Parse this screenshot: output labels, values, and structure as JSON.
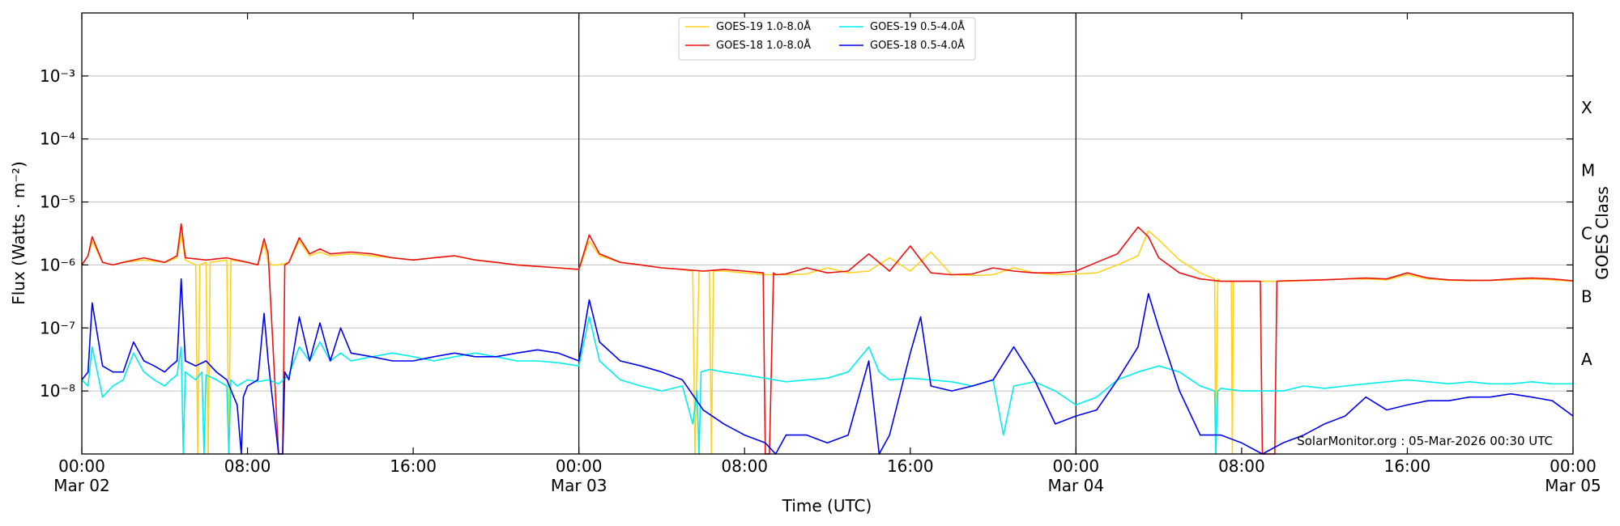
{
  "chart_data": {
    "type": "line",
    "title": "",
    "xlabel": "Time (UTC)",
    "ylabel": "Flux (Watts · m⁻²)",
    "y2label": "GOES Class",
    "yscale": "log",
    "xlim_hours": [
      0,
      72
    ],
    "ylim": [
      1e-09,
      0.01
    ],
    "grid": true,
    "legend_position": "top-center",
    "day_boundaries_hours": [
      24,
      48
    ],
    "x_ticks": [
      {
        "hour": 0,
        "time": "00:00",
        "date": "Mar 02"
      },
      {
        "hour": 8,
        "time": "08:00",
        "date": ""
      },
      {
        "hour": 16,
        "time": "16:00",
        "date": ""
      },
      {
        "hour": 24,
        "time": "00:00",
        "date": "Mar 03"
      },
      {
        "hour": 32,
        "time": "08:00",
        "date": ""
      },
      {
        "hour": 40,
        "time": "16:00",
        "date": ""
      },
      {
        "hour": 48,
        "time": "00:00",
        "date": "Mar 04"
      },
      {
        "hour": 56,
        "time": "08:00",
        "date": ""
      },
      {
        "hour": 64,
        "time": "16:00",
        "date": ""
      },
      {
        "hour": 72,
        "time": "00:00",
        "date": "Mar 05"
      }
    ],
    "y_ticks": [
      {
        "exp": -8,
        "label": "10⁻⁸"
      },
      {
        "exp": -7,
        "label": "10⁻⁷"
      },
      {
        "exp": -6,
        "label": "10⁻⁶"
      },
      {
        "exp": -5,
        "label": "10⁻⁵"
      },
      {
        "exp": -4,
        "label": "10⁻⁴"
      },
      {
        "exp": -3,
        "label": "10⁻³"
      }
    ],
    "goes_classes": [
      {
        "label": "A",
        "exp": -7.5
      },
      {
        "label": "B",
        "exp": -6.5
      },
      {
        "label": "C",
        "exp": -5.5
      },
      {
        "label": "M",
        "exp": -4.5
      },
      {
        "label": "X",
        "exp": -3.5
      }
    ],
    "credit": "SolarMonitor.org : 05-Mar-2026 00:30 UTC",
    "series": [
      {
        "name": "GOES-19 1.0-8.0Å",
        "color": "#ffd21f",
        "x": [
          0,
          0.3,
          0.5,
          1,
          1.5,
          2,
          3,
          4,
          4.6,
          4.8,
          5,
          5.5,
          5.6,
          5.7,
          6,
          6.1,
          6.2,
          7,
          7.1,
          7.2,
          8,
          8.5,
          8.8,
          9,
          9.2,
          9.5,
          10,
          10.5,
          11,
          11.5,
          12,
          13,
          14,
          15,
          16,
          17,
          18,
          19,
          20,
          21,
          22,
          23,
          24,
          24.5,
          25,
          26,
          27,
          28,
          29,
          29.5,
          29.6,
          29.8,
          30.3,
          30.4,
          30.5,
          31,
          32,
          33,
          34,
          35,
          36,
          37,
          38,
          39,
          40,
          41,
          42,
          43,
          44,
          45,
          46,
          47,
          48,
          49,
          50,
          51,
          51.5,
          52,
          53,
          54,
          54.7,
          54.75,
          54.85,
          55,
          55.5,
          55.55,
          55.6,
          56,
          57,
          58,
          59,
          60,
          61,
          62,
          63,
          64,
          65,
          66,
          67,
          68,
          69,
          70,
          71,
          72
        ],
        "y": [
          1e-06,
          1.4e-06,
          2.4e-06,
          1.1e-06,
          1e-06,
          1.1e-06,
          1.2e-06,
          1.1e-06,
          1.3e-06,
          3e-06,
          1.2e-06,
          1e-06,
          1e-09,
          1e-06,
          1.1e-06,
          1e-09,
          1.1e-06,
          1.2e-06,
          1e-09,
          1.2e-06,
          1.1e-06,
          1e-06,
          2.2e-06,
          1.1e-06,
          1e-06,
          1e-06,
          1.1e-06,
          2.4e-06,
          1.4e-06,
          1.6e-06,
          1.4e-06,
          1.5e-06,
          1.4e-06,
          1.3e-06,
          1.2e-06,
          1.3e-06,
          1.4e-06,
          1.2e-06,
          1.1e-06,
          1e-06,
          9.5e-07,
          9e-07,
          8.5e-07,
          2.4e-06,
          1.4e-06,
          1.1e-06,
          1e-06,
          9e-07,
          8.5e-07,
          8e-07,
          1e-09,
          8e-07,
          8e-07,
          1e-09,
          8e-07,
          8e-07,
          7.5e-07,
          7e-07,
          7e-07,
          7.2e-07,
          9e-07,
          7.5e-07,
          8e-07,
          1.3e-06,
          8e-07,
          1.6e-06,
          7e-07,
          6.8e-07,
          7e-07,
          9e-07,
          7.5e-07,
          7e-07,
          7.2e-07,
          7.5e-07,
          1e-06,
          1.4e-06,
          3.5e-06,
          2.5e-06,
          1.2e-06,
          7.5e-07,
          6e-07,
          1e-09,
          6e-07,
          5.5e-07,
          5.5e-07,
          1e-09,
          5.5e-07,
          5.5e-07,
          5.5e-07,
          5.5e-07,
          5.6e-07,
          5.8e-07,
          6e-07,
          6e-07,
          5.8e-07,
          7e-07,
          6e-07,
          5.7e-07,
          5.6e-07,
          5.7e-07,
          5.8e-07,
          6e-07,
          5.8e-07,
          5.5e-07
        ]
      },
      {
        "name": "GOES-18 1.0-8.0Å",
        "color": "#ee1111",
        "x": [
          0,
          0.3,
          0.5,
          1,
          1.5,
          2,
          3,
          4,
          4.6,
          4.8,
          5,
          6,
          7,
          8,
          8.5,
          8.8,
          9,
          9.5,
          9.7,
          9.8,
          10,
          10.5,
          11,
          11.5,
          12,
          13,
          14,
          15,
          16,
          17,
          18,
          19,
          20,
          21,
          22,
          23,
          24,
          24.5,
          25,
          26,
          27,
          28,
          29,
          30,
          31,
          32,
          32.9,
          33.0,
          33.2,
          33.4,
          33.5,
          34,
          35,
          36,
          37,
          38,
          39,
          40,
          41,
          42,
          43,
          44,
          45,
          46,
          47,
          48,
          49,
          50,
          51,
          51.5,
          52,
          53,
          54,
          55,
          56,
          56.9,
          57.0,
          57.6,
          57.7,
          58,
          59,
          60,
          61,
          62,
          63,
          64,
          65,
          66,
          67,
          68,
          69,
          70,
          71,
          72
        ],
        "y": [
          1e-06,
          1.4e-06,
          2.8e-06,
          1.1e-06,
          1e-06,
          1.1e-06,
          1.3e-06,
          1.1e-06,
          1.4e-06,
          4.5e-06,
          1.3e-06,
          1.2e-06,
          1.3e-06,
          1.1e-06,
          1e-06,
          2.6e-06,
          1.5e-06,
          1e-09,
          1e-09,
          1e-06,
          1.1e-06,
          2.7e-06,
          1.5e-06,
          1.8e-06,
          1.5e-06,
          1.6e-06,
          1.5e-06,
          1.3e-06,
          1.2e-06,
          1.3e-06,
          1.4e-06,
          1.2e-06,
          1.1e-06,
          1e-06,
          9.5e-07,
          9e-07,
          8.5e-07,
          3e-06,
          1.5e-06,
          1.1e-06,
          1e-06,
          9e-07,
          8.5e-07,
          8e-07,
          8.5e-07,
          8e-07,
          7.5e-07,
          1e-09,
          1e-09,
          7.5e-07,
          7e-07,
          7.2e-07,
          9e-07,
          7.5e-07,
          8e-07,
          1.5e-06,
          8e-07,
          2e-06,
          7.5e-07,
          7e-07,
          7.2e-07,
          9e-07,
          8e-07,
          7.5e-07,
          7.5e-07,
          8e-07,
          1.1e-06,
          1.5e-06,
          4e-06,
          2.8e-06,
          1.3e-06,
          7.5e-07,
          6e-07,
          5.5e-07,
          5.5e-07,
          5.5e-07,
          1e-09,
          1e-09,
          5.5e-07,
          5.6e-07,
          5.7e-07,
          5.8e-07,
          6e-07,
          6.2e-07,
          6e-07,
          7.5e-07,
          6.2e-07,
          5.8e-07,
          5.7e-07,
          5.7e-07,
          6e-07,
          6.2e-07,
          6e-07,
          5.6e-07
        ]
      },
      {
        "name": "GOES-19 0.5-4.0Å",
        "color": "#00eeee",
        "x": [
          0,
          0.3,
          0.5,
          1,
          1.5,
          2,
          2.5,
          3,
          3.5,
          4,
          4.3,
          4.6,
          4.8,
          4.9,
          5,
          5.5,
          5.8,
          5.9,
          6,
          6.5,
          7,
          7.1,
          7.2,
          7.5,
          8,
          8.5,
          9,
          9.5,
          10,
          10.5,
          11,
          11.5,
          12,
          12.5,
          13,
          14,
          15,
          16,
          17,
          18,
          19,
          20,
          21,
          22,
          23,
          24,
          24.5,
          25,
          26,
          27,
          28,
          29,
          29.5,
          29.7,
          29.8,
          29.9,
          30.3,
          31,
          32,
          33,
          34,
          35,
          36,
          37,
          38,
          38.5,
          39,
          40,
          41,
          42,
          43,
          44,
          44.5,
          45,
          46,
          47,
          48,
          49,
          50,
          51,
          52,
          53,
          54,
          54.7,
          54.75,
          54.85,
          55,
          56,
          57,
          58,
          59,
          60,
          61,
          62,
          63,
          64,
          65,
          66,
          67,
          68,
          69,
          70,
          71,
          72
        ],
        "y": [
          1.5e-08,
          1.2e-08,
          5e-08,
          8e-09,
          1.2e-08,
          1.5e-08,
          4e-08,
          2e-08,
          1.5e-08,
          1.2e-08,
          1.5e-08,
          1.8e-08,
          5e-08,
          1e-09,
          2e-08,
          1.5e-08,
          2e-08,
          1e-09,
          1.8e-08,
          1.5e-08,
          1.2e-08,
          1e-09,
          1.5e-08,
          1.2e-08,
          1.5e-08,
          1.4e-08,
          1.5e-08,
          1.3e-08,
          1.8e-08,
          5e-08,
          3e-08,
          6e-08,
          3e-08,
          4e-08,
          3e-08,
          3.5e-08,
          4e-08,
          3.5e-08,
          3e-08,
          3.5e-08,
          4e-08,
          3.5e-08,
          3e-08,
          3e-08,
          2.8e-08,
          2.5e-08,
          1.5e-07,
          3e-08,
          1.5e-08,
          1.2e-08,
          1e-08,
          1.2e-08,
          3e-09,
          1e-08,
          1e-09,
          2e-08,
          2.2e-08,
          2e-08,
          1.8e-08,
          1.6e-08,
          1.4e-08,
          1.5e-08,
          1.6e-08,
          2e-08,
          5e-08,
          2e-08,
          1.5e-08,
          1.6e-08,
          1.5e-08,
          1.4e-08,
          1.2e-08,
          1.5e-08,
          2e-09,
          1.2e-08,
          1.4e-08,
          1e-08,
          6e-09,
          8e-09,
          1.5e-08,
          2e-08,
          2.5e-08,
          2e-08,
          1.2e-08,
          1e-08,
          1e-09,
          1e-08,
          1.1e-08,
          1e-08,
          1e-08,
          1e-08,
          1.2e-08,
          1.1e-08,
          1.2e-08,
          1.3e-08,
          1.4e-08,
          1.5e-08,
          1.4e-08,
          1.3e-08,
          1.4e-08,
          1.3e-08,
          1.3e-08,
          1.4e-08,
          1.3e-08,
          1.3e-08
        ]
      },
      {
        "name": "GOES-18 0.5-4.0Å",
        "color": "#0000ee",
        "x": [
          0,
          0.3,
          0.5,
          1,
          1.5,
          2,
          2.5,
          3,
          3.5,
          4,
          4.3,
          4.6,
          4.8,
          5,
          5.5,
          6,
          6.5,
          7,
          7.5,
          7.7,
          7.8,
          8,
          8.5,
          8.8,
          9,
          9.5,
          9.7,
          9.8,
          10,
          10.5,
          11,
          11.5,
          12,
          12.5,
          13,
          14,
          15,
          16,
          17,
          18,
          19,
          20,
          21,
          22,
          23,
          24,
          24.5,
          25,
          26,
          27,
          28,
          29,
          30,
          31,
          32,
          33,
          33.5,
          34,
          35,
          36,
          37,
          38,
          38.5,
          39,
          40,
          40.5,
          41,
          42,
          43,
          44,
          45,
          46,
          47,
          48,
          49,
          50,
          51,
          51.5,
          52,
          53,
          54,
          55,
          56,
          57,
          58,
          59,
          60,
          61,
          62,
          63,
          64,
          65,
          66,
          67,
          68,
          69,
          70,
          71,
          72
        ],
        "y": [
          1.5e-08,
          2e-08,
          2.5e-07,
          2.5e-08,
          2e-08,
          2e-08,
          6e-08,
          3e-08,
          2.5e-08,
          2e-08,
          2.5e-08,
          3e-08,
          6e-07,
          3e-08,
          2.5e-08,
          3e-08,
          2e-08,
          1.5e-08,
          6e-09,
          1e-09,
          8e-09,
          1.2e-08,
          1.5e-08,
          1.7e-07,
          3e-08,
          1e-09,
          1e-09,
          2e-08,
          1.5e-08,
          1.5e-07,
          3e-08,
          1.2e-07,
          3e-08,
          1e-07,
          4e-08,
          3.5e-08,
          3e-08,
          3e-08,
          3.5e-08,
          4e-08,
          3.5e-08,
          3.5e-08,
          4e-08,
          4.5e-08,
          4e-08,
          3e-08,
          2.8e-07,
          6e-08,
          3e-08,
          2.5e-08,
          2e-08,
          1.5e-08,
          5e-09,
          3e-09,
          2e-09,
          1.5e-09,
          1e-09,
          2e-09,
          2e-09,
          1.5e-09,
          2e-09,
          3e-08,
          1e-09,
          2e-09,
          4e-08,
          1.5e-07,
          1.2e-08,
          1e-08,
          1.2e-08,
          1.5e-08,
          5e-08,
          1.5e-08,
          3e-09,
          4e-09,
          5e-09,
          1.5e-08,
          5e-08,
          3.5e-07,
          1e-07,
          1e-08,
          2e-09,
          2e-09,
          1.5e-09,
          1e-09,
          1.5e-09,
          2e-09,
          3e-09,
          4e-09,
          8e-09,
          5e-09,
          6e-09,
          7e-09,
          7e-09,
          8e-09,
          8e-09,
          9e-09,
          8e-09,
          7e-09,
          4e-09
        ]
      }
    ]
  }
}
